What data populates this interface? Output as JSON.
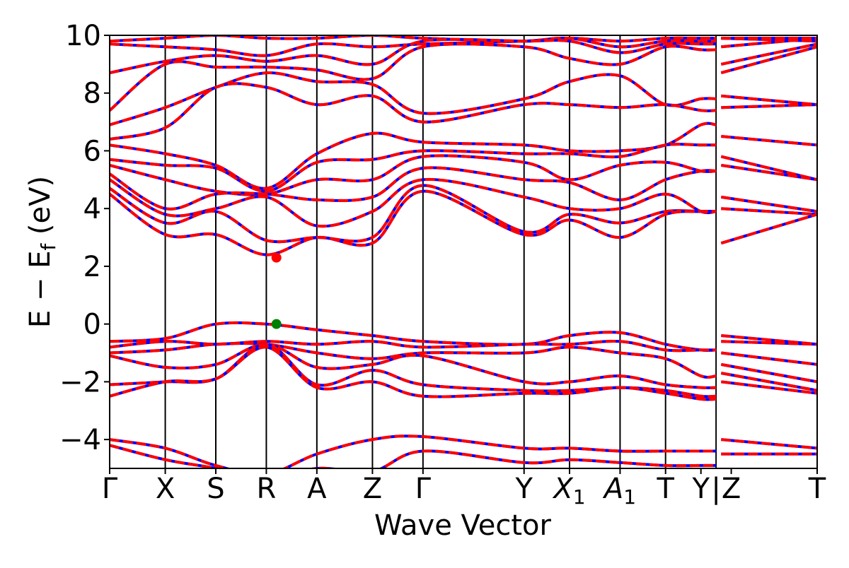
{
  "chart_data": {
    "type": "line",
    "title": "",
    "xlabel": "Wave Vector",
    "ylabel": "E − E_f (eV)",
    "ylabel_parts": {
      "main": "E − E",
      "sub": "f",
      "unit": " (eV)"
    },
    "ylim": [
      -5,
      10
    ],
    "y_ticks": [
      {
        "value": -4,
        "label": "−4"
      },
      {
        "value": -2,
        "label": "−2"
      },
      {
        "value": 0,
        "label": "0"
      },
      {
        "value": 2,
        "label": "2"
      },
      {
        "value": 4,
        "label": "4"
      },
      {
        "value": 6,
        "label": "6"
      },
      {
        "value": 8,
        "label": "8"
      },
      {
        "value": 10,
        "label": "10"
      }
    ],
    "xlim": [
      0,
      14.0
    ],
    "k_points": [
      {
        "label": "Γ",
        "x": 0.0
      },
      {
        "label": "X",
        "x": 1.1
      },
      {
        "label": "S",
        "x": 2.1
      },
      {
        "label": "R",
        "x": 3.1
      },
      {
        "label": "A",
        "x": 4.1
      },
      {
        "label": "Z",
        "x": 5.2
      },
      {
        "label": "Γ",
        "x": 6.2
      },
      {
        "label": "Y",
        "x": 8.2
      },
      {
        "label": "X",
        "sub": "1",
        "italic": true,
        "x": 9.1
      },
      {
        "label": "A",
        "sub": "1",
        "italic": true,
        "x": 10.1
      },
      {
        "label": "T",
        "x": 11.0
      },
      {
        "label": "Y",
        "x": 11.7
      },
      {
        "label": "|",
        "x": 12.0
      },
      {
        "label": "Z",
        "x": 12.3
      },
      {
        "label": "T",
        "x": 14.0
      }
    ],
    "vlines": [
      1.1,
      2.1,
      3.1,
      4.1,
      5.2,
      6.2,
      8.2,
      9.1,
      10.1,
      11.0,
      12.0
    ],
    "gap": [
      12.0,
      12.1
    ],
    "series_style": [
      {
        "color": "#0000ff",
        "dash": "none"
      },
      {
        "color": "#ff0000",
        "dash": "dashed"
      }
    ],
    "bands": [
      [
        9.8,
        9.9,
        10.0,
        9.9,
        9.9,
        10.0,
        9.9,
        9.8,
        9.9,
        9.8,
        9.9,
        9.9,
        9.9,
        9.8
      ],
      [
        9.7,
        9.6,
        9.5,
        9.3,
        9.7,
        9.6,
        9.7,
        9.8,
        9.9,
        9.6,
        9.8,
        9.8,
        9.9,
        9.9
      ],
      [
        8.7,
        9.1,
        9.3,
        9.1,
        9.3,
        9.0,
        9.8,
        9.8,
        9.8,
        9.4,
        9.7,
        9.7,
        9.6,
        9.9
      ],
      [
        7.4,
        9.0,
        8.9,
        8.9,
        8.8,
        8.5,
        9.6,
        9.6,
        9.2,
        9.0,
        9.6,
        9.5,
        9.0,
        9.7
      ],
      [
        6.9,
        7.5,
        8.2,
        8.7,
        8.4,
        8.3,
        7.3,
        7.8,
        8.4,
        8.6,
        7.6,
        7.8,
        8.7,
        9.6
      ],
      [
        6.4,
        6.8,
        8.2,
        8.2,
        7.6,
        7.9,
        7.0,
        7.6,
        7.6,
        7.5,
        7.6,
        7.4,
        7.9,
        7.6
      ],
      [
        6.2,
        5.9,
        5.5,
        4.7,
        5.9,
        6.6,
        6.3,
        6.2,
        6.0,
        6.0,
        6.2,
        6.9,
        7.5,
        7.6
      ],
      [
        5.7,
        5.5,
        5.4,
        4.6,
        5.6,
        5.7,
        6.0,
        5.9,
        5.9,
        5.8,
        6.2,
        6.2,
        6.5,
        6.2
      ],
      [
        5.5,
        5.0,
        4.6,
        4.5,
        5.0,
        5.0,
        5.8,
        5.6,
        5.0,
        5.5,
        5.6,
        5.3,
        5.8,
        5.0
      ],
      [
        5.2,
        4.0,
        4.5,
        4.5,
        4.3,
        4.4,
        5.4,
        5.0,
        4.9,
        4.3,
        5.0,
        5.3,
        5.5,
        5.0
      ],
      [
        5.0,
        3.8,
        4.0,
        4.4,
        3.4,
        3.9,
        5.0,
        4.4,
        4.0,
        4.0,
        4.5,
        3.9,
        4.4,
        3.9
      ],
      [
        4.7,
        3.5,
        3.9,
        2.9,
        3.0,
        3.0,
        4.8,
        3.2,
        3.8,
        3.5,
        3.9,
        3.9,
        4.0,
        3.8
      ],
      [
        4.5,
        3.1,
        3.1,
        2.4,
        3.0,
        2.8,
        4.6,
        3.1,
        3.6,
        3.0,
        3.8,
        3.9,
        2.8,
        3.8
      ],
      [
        -0.6,
        -0.5,
        0.0,
        0.0,
        -0.2,
        -0.4,
        -0.6,
        -0.7,
        -0.4,
        -0.3,
        -0.7,
        -0.9,
        -0.4,
        -0.7
      ],
      [
        -0.8,
        -0.6,
        -0.7,
        -0.6,
        -0.7,
        -0.6,
        -0.8,
        -0.7,
        -0.7,
        -0.6,
        -0.9,
        -0.9,
        -0.6,
        -0.7
      ],
      [
        -1.0,
        -0.9,
        -0.7,
        -0.7,
        -1.0,
        -1.2,
        -1.0,
        -1.0,
        -0.8,
        -1.0,
        -1.2,
        -1.8,
        -1.0,
        -1.4
      ],
      [
        -1.1,
        -1.5,
        -1.4,
        -0.7,
        -1.5,
        -1.4,
        -1.1,
        -2.0,
        -2.0,
        -1.8,
        -2.1,
        -2.2,
        -1.4,
        -2.0
      ],
      [
        -2.1,
        -2.0,
        -1.9,
        -0.7,
        -2.1,
        -1.6,
        -2.1,
        -2.3,
        -2.3,
        -2.2,
        -2.3,
        -2.5,
        -1.7,
        -2.3
      ],
      [
        -2.5,
        -2.0,
        -1.9,
        -0.8,
        -2.2,
        -2.0,
        -2.5,
        -2.4,
        -2.4,
        -2.2,
        -2.4,
        -2.6,
        -2.0,
        -2.4
      ],
      [
        -4.0,
        -4.3,
        -4.9,
        -5.2,
        -4.5,
        -4.0,
        -3.9,
        -4.3,
        -4.3,
        -4.4,
        -4.4,
        -4.4,
        -4.0,
        -4.3
      ],
      [
        -4.2,
        -4.7,
        -5.0,
        -5.4,
        -5.0,
        -5.1,
        -4.4,
        -4.8,
        -4.7,
        -4.8,
        -4.9,
        -4.9,
        -4.5,
        -4.5
      ]
    ],
    "band_x": [
      0.0,
      1.1,
      2.1,
      3.1,
      4.1,
      5.2,
      6.2,
      8.2,
      9.1,
      10.1,
      11.0,
      11.7,
      12.1,
      14.0
    ],
    "markers": [
      {
        "label": "CBM",
        "x": 3.3,
        "y": 2.3,
        "color": "#ff0000"
      },
      {
        "label": "VBM",
        "x": 3.3,
        "y": 0.0,
        "color": "#008000"
      }
    ]
  }
}
